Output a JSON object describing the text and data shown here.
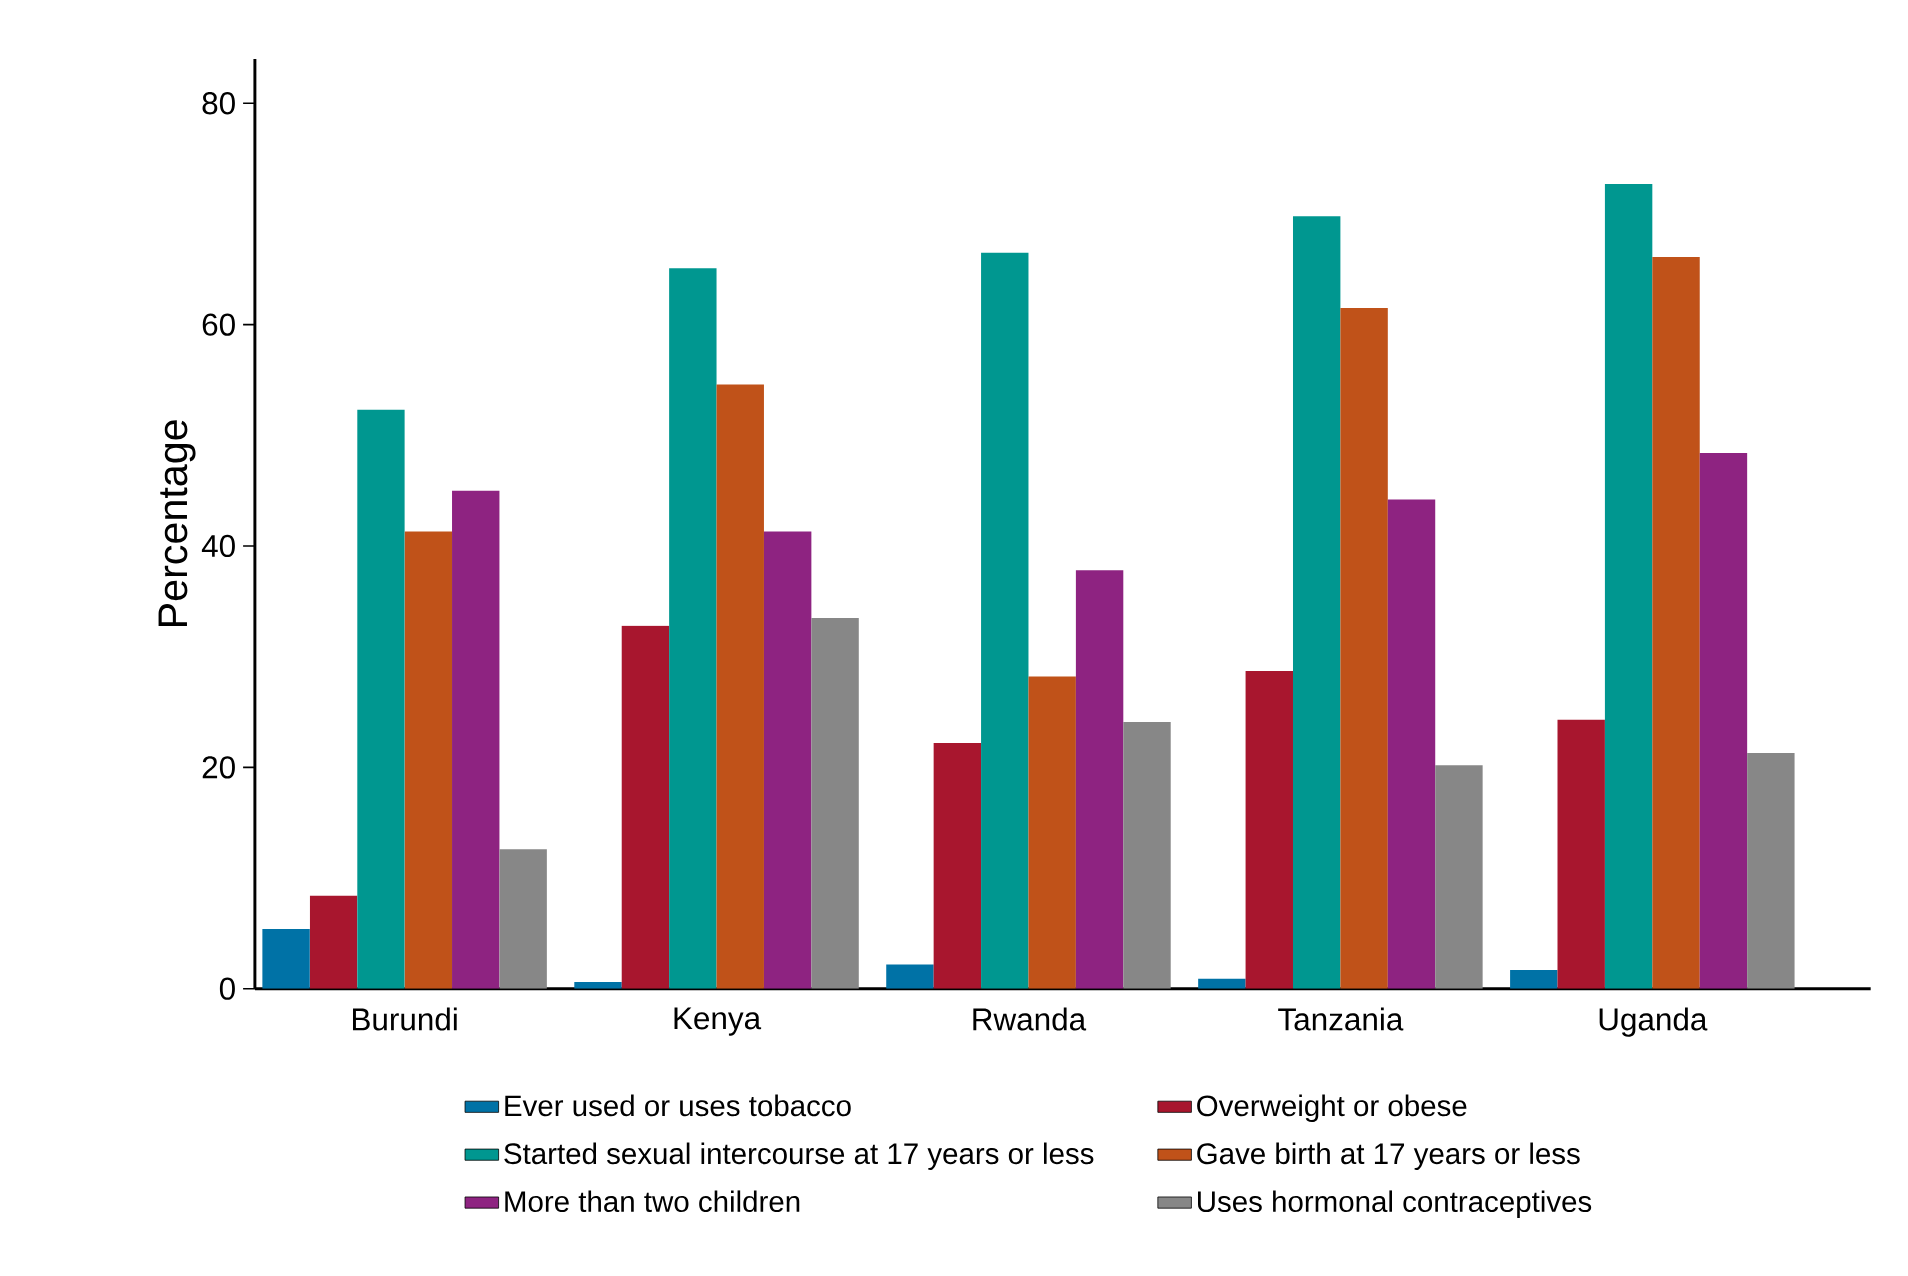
{
  "chart_data": {
    "type": "bar",
    "ylabel": "Percentage",
    "categories": [
      "Burundi",
      "Kenya",
      "Rwanda",
      "Tanzania",
      "Uganda"
    ],
    "series": [
      {
        "name": "Ever used or uses tobacco",
        "color": "#0072a6",
        "values": [
          5.4,
          0.6,
          2.2,
          0.9,
          1.7
        ]
      },
      {
        "name": "Overweight or obese",
        "color": "#a8162e",
        "values": [
          8.4,
          32.8,
          22.2,
          28.7,
          24.3
        ]
      },
      {
        "name": "Started sexual intercourse at 17 years or less",
        "color": "#009790",
        "values": [
          52.3,
          65.1,
          66.5,
          69.8,
          72.7
        ]
      },
      {
        "name": "Gave birth at 17 years or less",
        "color": "#c05219",
        "values": [
          41.3,
          54.6,
          28.2,
          61.5,
          66.1
        ]
      },
      {
        "name": "More than two children",
        "color": "#8e2381",
        "values": [
          45.0,
          41.3,
          37.8,
          44.2,
          48.4
        ]
      },
      {
        "name": "Uses hormonal contraceptives",
        "color": "#878787",
        "values": [
          12.6,
          33.5,
          24.1,
          20.2,
          21.3
        ]
      }
    ],
    "ylim": [
      0,
      84
    ],
    "yticks": [
      0,
      20,
      40,
      60,
      80
    ],
    "grid": false,
    "legend": "bottom"
  }
}
